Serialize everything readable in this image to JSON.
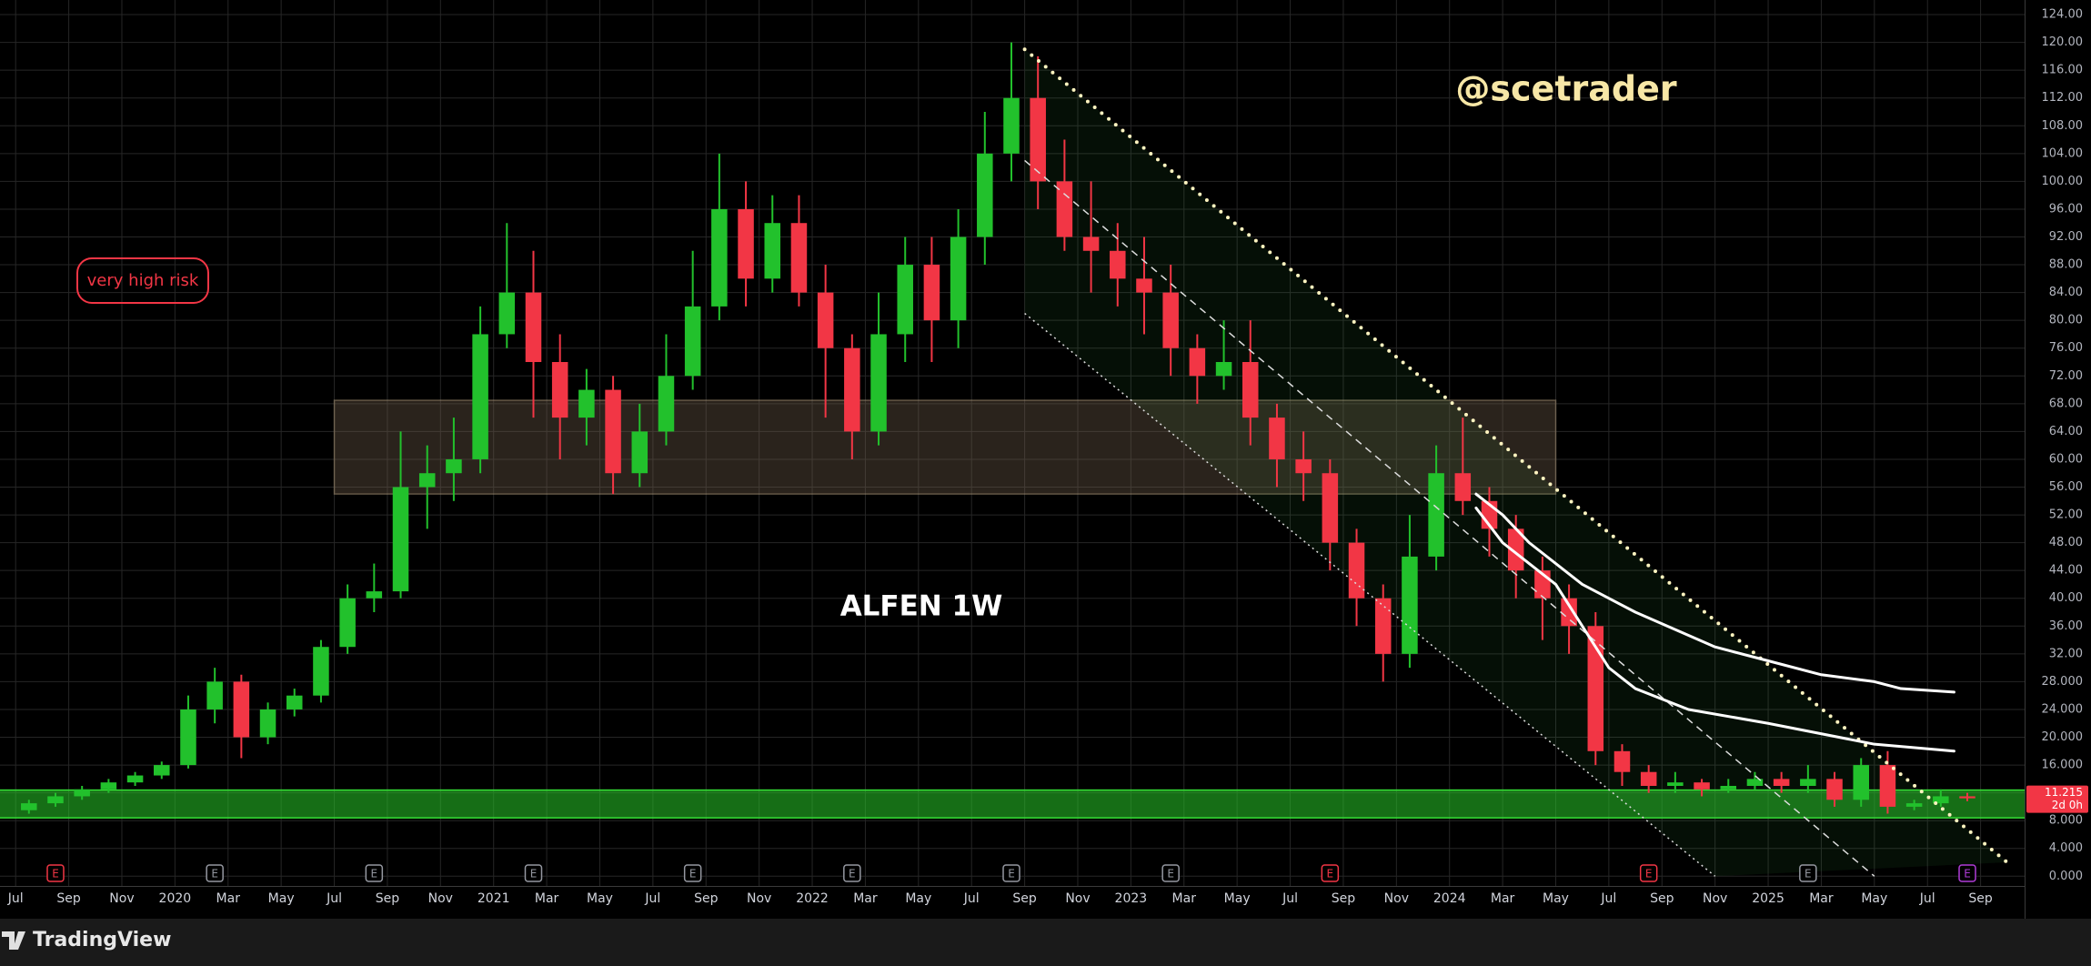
{
  "chart_data": {
    "type": "candlestick",
    "title": "ALFEN 1W",
    "watermark": "@scetrader",
    "annotation": "very high risk",
    "brand": "TradingView",
    "x": [
      "2019-07",
      "2019-08",
      "2019-09",
      "2019-10",
      "2019-11",
      "2019-12",
      "2020-01",
      "2020-02",
      "2020-03",
      "2020-04",
      "2020-05",
      "2020-06",
      "2020-07",
      "2020-08",
      "2020-09",
      "2020-10",
      "2020-11",
      "2020-12",
      "2021-01",
      "2021-02",
      "2021-03",
      "2021-04",
      "2021-05",
      "2021-06",
      "2021-07",
      "2021-08",
      "2021-09",
      "2021-10",
      "2021-11",
      "2021-12",
      "2022-01",
      "2022-02",
      "2022-03",
      "2022-04",
      "2022-05",
      "2022-06",
      "2022-07",
      "2022-08",
      "2022-09",
      "2022-10",
      "2022-11",
      "2022-12",
      "2023-01",
      "2023-02",
      "2023-03",
      "2023-04",
      "2023-05",
      "2023-06",
      "2023-07",
      "2023-08",
      "2023-09",
      "2023-10",
      "2023-11",
      "2023-12",
      "2024-01",
      "2024-02",
      "2024-03",
      "2024-04",
      "2024-05",
      "2024-06",
      "2024-07",
      "2024-08",
      "2024-09",
      "2024-10",
      "2024-11",
      "2024-12",
      "2025-01",
      "2025-02",
      "2025-03",
      "2025-04",
      "2025-05",
      "2025-06",
      "2025-07",
      "2025-08"
    ],
    "open": [
      9.5,
      10.5,
      11.5,
      12.5,
      13.5,
      14.5,
      16,
      24,
      28,
      20,
      24,
      26,
      33,
      40,
      41,
      56,
      58,
      60,
      78,
      84,
      74,
      66,
      70,
      58,
      64,
      72,
      82,
      96,
      86,
      94,
      84,
      76,
      64,
      78,
      88,
      80,
      92,
      104,
      112,
      100,
      92,
      90,
      86,
      84,
      76,
      72,
      74,
      66,
      60,
      58,
      48,
      40,
      32,
      46,
      58,
      54,
      50,
      44,
      40,
      36,
      18,
      15,
      13,
      13.5,
      12.5,
      13,
      14,
      13,
      14,
      11,
      16,
      10,
      10.5,
      11.5
    ],
    "high": [
      11,
      12,
      13,
      14,
      15,
      16.5,
      26,
      30,
      29,
      25,
      27,
      34,
      42,
      45,
      64,
      62,
      66,
      82,
      94,
      90,
      78,
      73,
      72,
      68,
      78,
      90,
      104,
      100,
      98,
      98,
      88,
      78,
      84,
      92,
      92,
      96,
      110,
      120,
      118,
      106,
      100,
      94,
      92,
      88,
      78,
      80,
      80,
      68,
      64,
      60,
      50,
      42,
      52,
      62,
      66,
      56,
      52,
      46,
      42,
      38,
      19,
      16,
      15,
      14,
      14,
      15,
      15,
      16,
      15,
      17,
      18,
      11,
      12.5,
      12
    ],
    "low": [
      9,
      10,
      11,
      12,
      13,
      14,
      15.5,
      22,
      17,
      19,
      23,
      25,
      32,
      38,
      40,
      50,
      54,
      58,
      76,
      66,
      60,
      62,
      55,
      56,
      62,
      70,
      80,
      82,
      84,
      82,
      66,
      60,
      62,
      74,
      74,
      76,
      88,
      100,
      96,
      90,
      84,
      82,
      78,
      72,
      68,
      70,
      62,
      56,
      54,
      44,
      36,
      28,
      30,
      44,
      52,
      46,
      40,
      34,
      32,
      16,
      13,
      12,
      12,
      11.5,
      12,
      12.5,
      12,
      12,
      10,
      10,
      9,
      9.5,
      10,
      10.8
    ],
    "close": [
      10.5,
      11.5,
      12.5,
      13.5,
      14.5,
      16,
      24,
      28,
      20,
      24,
      26,
      33,
      40,
      41,
      56,
      58,
      60,
      78,
      84,
      74,
      66,
      70,
      58,
      64,
      72,
      82,
      96,
      86,
      94,
      84,
      76,
      64,
      78,
      88,
      80,
      92,
      104,
      112,
      100,
      92,
      90,
      86,
      84,
      76,
      72,
      74,
      66,
      60,
      58,
      48,
      40,
      32,
      46,
      58,
      54,
      50,
      44,
      40,
      36,
      18,
      15,
      13,
      13.5,
      12.5,
      13,
      14,
      13,
      14,
      11,
      16,
      10,
      10.5,
      11.5,
      11.215
    ],
    "up_color": "#22c12c",
    "down_color": "#f23645",
    "xlim": [
      "2019-06",
      "2025-11"
    ],
    "ylim": [
      -1.4,
      126.1
    ],
    "grid": true,
    "xticks": [
      {
        "value": "2019-07",
        "label": "Jul"
      },
      {
        "value": "2019-09",
        "label": "Sep"
      },
      {
        "value": "2019-11",
        "label": "Nov"
      },
      {
        "value": "2020-01",
        "label": "2020"
      },
      {
        "value": "2020-03",
        "label": "Mar"
      },
      {
        "value": "2020-05",
        "label": "May"
      },
      {
        "value": "2020-07",
        "label": "Jul"
      },
      {
        "value": "2020-09",
        "label": "Sep"
      },
      {
        "value": "2020-11",
        "label": "Nov"
      },
      {
        "value": "2021-01",
        "label": "2021"
      },
      {
        "value": "2021-03",
        "label": "Mar"
      },
      {
        "value": "2021-05",
        "label": "May"
      },
      {
        "value": "2021-07",
        "label": "Jul"
      },
      {
        "value": "2021-09",
        "label": "Sep"
      },
      {
        "value": "2021-11",
        "label": "Nov"
      },
      {
        "value": "2022-01",
        "label": "2022"
      },
      {
        "value": "2022-03",
        "label": "Mar"
      },
      {
        "value": "2022-05",
        "label": "May"
      },
      {
        "value": "2022-07",
        "label": "Jul"
      },
      {
        "value": "2022-09",
        "label": "Sep"
      },
      {
        "value": "2022-11",
        "label": "Nov"
      },
      {
        "value": "2023-01",
        "label": "2023"
      },
      {
        "value": "2023-03",
        "label": "Mar"
      },
      {
        "value": "2023-05",
        "label": "May"
      },
      {
        "value": "2023-07",
        "label": "Jul"
      },
      {
        "value": "2023-09",
        "label": "Sep"
      },
      {
        "value": "2023-11",
        "label": "Nov"
      },
      {
        "value": "2024-01",
        "label": "2024"
      },
      {
        "value": "2024-03",
        "label": "Mar"
      },
      {
        "value": "2024-05",
        "label": "May"
      },
      {
        "value": "2024-07",
        "label": "Jul"
      },
      {
        "value": "2024-09",
        "label": "Sep"
      },
      {
        "value": "2024-11",
        "label": "Nov"
      },
      {
        "value": "2025-01",
        "label": "2025"
      },
      {
        "value": "2025-03",
        "label": "Mar"
      },
      {
        "value": "2025-05",
        "label": "May"
      },
      {
        "value": "2025-07",
        "label": "Jul"
      },
      {
        "value": "2025-09",
        "label": "Sep"
      }
    ],
    "yticks": [
      {
        "value": 0,
        "label": "0.000"
      },
      {
        "value": 4,
        "label": "4.000"
      },
      {
        "value": 8,
        "label": "8.000"
      },
      {
        "value": 12,
        "label": "12.000"
      },
      {
        "value": 16,
        "label": "16.000"
      },
      {
        "value": 20,
        "label": "20.000"
      },
      {
        "value": 24,
        "label": "24.000"
      },
      {
        "value": 28,
        "label": "28.000"
      },
      {
        "value": 32,
        "label": "32.00"
      },
      {
        "value": 36,
        "label": "36.00"
      },
      {
        "value": 40,
        "label": "40.00"
      },
      {
        "value": 44,
        "label": "44.00"
      },
      {
        "value": 48,
        "label": "48.00"
      },
      {
        "value": 52,
        "label": "52.00"
      },
      {
        "value": 56,
        "label": "56.00"
      },
      {
        "value": 60,
        "label": "60.00"
      },
      {
        "value": 64,
        "label": "64.00"
      },
      {
        "value": 68,
        "label": "68.00"
      },
      {
        "value": 72,
        "label": "72.00"
      },
      {
        "value": 76,
        "label": "76.00"
      },
      {
        "value": 80,
        "label": "80.00"
      },
      {
        "value": 84,
        "label": "84.00"
      },
      {
        "value": 88,
        "label": "88.00"
      },
      {
        "value": 92,
        "label": "92.00"
      },
      {
        "value": 96,
        "label": "96.00"
      },
      {
        "value": 100,
        "label": "100.00"
      },
      {
        "value": 104,
        "label": "104.00"
      },
      {
        "value": 108,
        "label": "108.00"
      },
      {
        "value": 112,
        "label": "112.00"
      },
      {
        "value": 116,
        "label": "116.00"
      },
      {
        "value": 120,
        "label": "120.00"
      },
      {
        "value": 124,
        "label": "124.00"
      }
    ],
    "last_price": 11.215,
    "countdown": "2d 0h",
    "zones": [
      {
        "x": [
          "2020-07",
          "2024-05"
        ],
        "y": [
          55,
          68.5
        ],
        "color": "rgba(120,100,80,0.35)",
        "border": "rgba(170,150,120,0.5)"
      },
      {
        "x": [
          "2019-06",
          "2025-11"
        ],
        "y": [
          8.4,
          12.4
        ],
        "color": "rgba(40,200,40,0.55)",
        "border": "#35e035"
      }
    ],
    "channel": {
      "x": [
        "2022-09",
        "2025-10",
        "2024-11",
        "2022-09"
      ],
      "values": [
        119,
        2,
        0,
        81
      ],
      "color": "rgba(60,170,70,0.09)"
    },
    "lines": [
      {
        "x": [
          "2022-09",
          "2025-10"
        ],
        "values": [
          119,
          2
        ],
        "color": "#fff4c0",
        "style": "dotted"
      },
      {
        "x": [
          "2022-09",
          "2025-05"
        ],
        "values": [
          103,
          0
        ],
        "color": "#dddddd",
        "style": "dashed"
      },
      {
        "x": [
          "2022-09",
          "2024-11"
        ],
        "values": [
          81,
          0
        ],
        "color": "#dddddd",
        "style": "thin-dotted"
      },
      {
        "x": [
          "2024-02",
          "2024-03",
          "2024-04",
          "2024-06",
          "2024-08",
          "2024-11",
          "2025-01",
          "2025-03",
          "2025-05",
          "2025-06",
          "2025-08"
        ],
        "values": [
          55,
          52,
          48,
          42,
          38,
          33,
          31,
          29,
          28,
          27,
          26.5
        ],
        "color": "#ffffff",
        "style": "solid"
      },
      {
        "x": [
          "2024-02",
          "2024-03",
          "2024-04",
          "2024-05",
          "2024-06",
          "2024-07",
          "2024-08",
          "2024-10",
          "2025-01",
          "2025-05",
          "2025-08"
        ],
        "values": [
          53,
          48,
          45,
          42,
          36,
          30,
          27,
          24,
          22,
          19,
          18
        ],
        "color": "#ffffff",
        "style": "solid"
      }
    ],
    "earnings": [
      {
        "x": "2019-08",
        "label": "E",
        "color": "#f23645"
      },
      {
        "x": "2020-02",
        "label": "E",
        "color": "#9598a1"
      },
      {
        "x": "2020-08",
        "label": "E",
        "color": "#9598a1"
      },
      {
        "x": "2021-02",
        "label": "E",
        "color": "#9598a1"
      },
      {
        "x": "2021-08",
        "label": "E",
        "color": "#9598a1"
      },
      {
        "x": "2022-02",
        "label": "E",
        "color": "#9598a1"
      },
      {
        "x": "2022-08",
        "label": "E",
        "color": "#9598a1"
      },
      {
        "x": "2023-02",
        "label": "E",
        "color": "#9598a1"
      },
      {
        "x": "2023-08",
        "label": "E",
        "color": "#f23645"
      },
      {
        "x": "2024-08",
        "label": "E",
        "color": "#f23645"
      },
      {
        "x": "2025-02",
        "label": "E",
        "color": "#9598a1"
      },
      {
        "x": "2025-08",
        "label": "E",
        "color": "#b03cd8"
      }
    ]
  }
}
